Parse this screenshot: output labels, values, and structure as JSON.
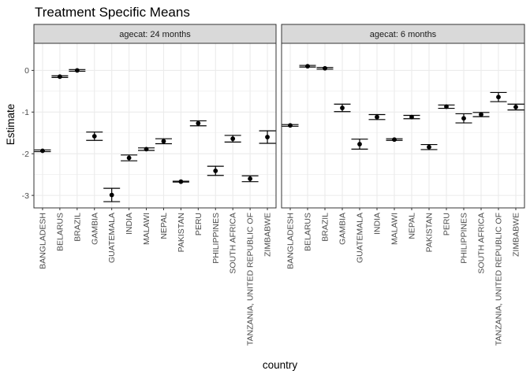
{
  "chart_data": {
    "type": "scatter",
    "style": "point-with-errorbars",
    "title": "Treatment Specific Means",
    "xlabel": "country",
    "ylabel": "Estimate",
    "ylim": [
      -3.3,
      0.65
    ],
    "yticks": [
      0,
      -1,
      -2,
      -3
    ],
    "grid": true,
    "legend": "none",
    "colors": {
      "point": "#000000",
      "errorbar": "#000000",
      "strip_fill": "#d9d9d9",
      "strip_border": "#333333",
      "panel_border": "#333333",
      "grid": "#ebebeb"
    },
    "categories": [
      "BANGLADESH",
      "BELARUS",
      "BRAZIL",
      "GAMBIA",
      "GUATEMALA",
      "INDIA",
      "MALAWI",
      "NEPAL",
      "PAKISTAN",
      "PERU",
      "PHILIPPINES",
      "SOUTH AFRICA",
      "TANZANIA, UNITED REPUBLIC OF",
      "ZIMBABWE"
    ],
    "panels": [
      {
        "label": "agecat: 24 months",
        "estimates": [
          -1.93,
          -0.15,
          0.0,
          -1.58,
          -2.99,
          -2.1,
          -1.89,
          -1.7,
          -2.67,
          -1.27,
          -2.41,
          -1.64,
          -2.6,
          -1.6
        ],
        "lower": [
          -1.95,
          -0.17,
          -0.02,
          -1.68,
          -3.15,
          -2.17,
          -1.92,
          -1.76,
          -2.68,
          -1.33,
          -2.52,
          -1.72,
          -2.67,
          -1.75
        ],
        "upper": [
          -1.91,
          -0.13,
          0.02,
          -1.48,
          -2.83,
          -2.03,
          -1.86,
          -1.64,
          -2.66,
          -1.21,
          -2.3,
          -1.56,
          -2.53,
          -1.45
        ]
      },
      {
        "label": "agecat: 6 months",
        "estimates": [
          -1.32,
          0.1,
          0.05,
          -0.9,
          -1.77,
          -1.12,
          -1.66,
          -1.12,
          -1.84,
          -0.87,
          -1.15,
          -1.06,
          -0.64,
          -0.88
        ],
        "lower": [
          -1.34,
          0.08,
          0.03,
          -0.99,
          -1.89,
          -1.18,
          -1.68,
          -1.16,
          -1.9,
          -0.91,
          -1.26,
          -1.11,
          -0.75,
          -0.95
        ],
        "upper": [
          -1.3,
          0.12,
          0.07,
          -0.81,
          -1.65,
          -1.06,
          -1.64,
          -1.08,
          -1.78,
          -0.83,
          -1.04,
          -1.01,
          -0.53,
          -0.81
        ]
      }
    ]
  }
}
